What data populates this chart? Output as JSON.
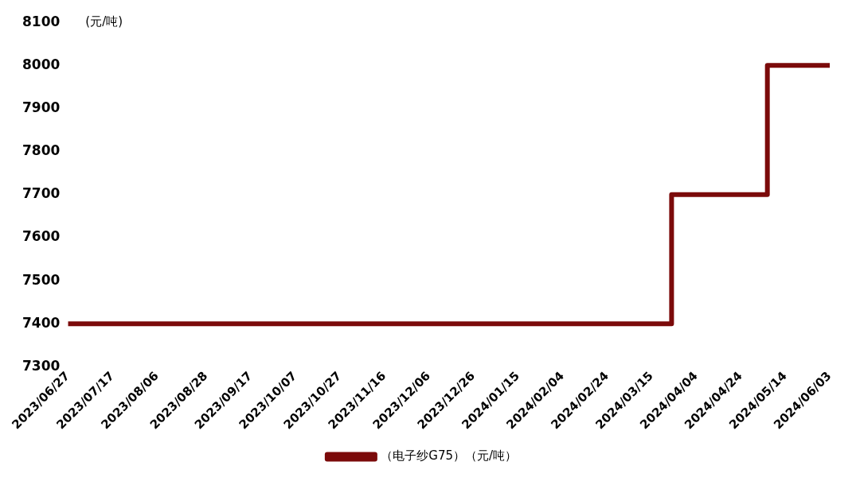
{
  "chart_data": {
    "type": "step",
    "ylabel": "(元/吨)",
    "x": [
      "2023-06-27",
      "2024-03-24",
      "2024-05-06",
      "2024-06-03"
    ],
    "series": [
      {
        "name": "（电子纱G75）（元/吨）",
        "color": "#7b0a0a",
        "values": [
          7400,
          7700,
          8000,
          8000
        ]
      }
    ],
    "xlim": [
      "2023-06-27",
      "2024-06-03"
    ],
    "xticks": [
      {
        "value": "2023-06-27",
        "label": "2023/06/27"
      },
      {
        "value": "2023-07-17",
        "label": "2023/07/17"
      },
      {
        "value": "2023-08-06",
        "label": "2023/08/06"
      },
      {
        "value": "2023-08-28",
        "label": "2023/08/28"
      },
      {
        "value": "2023-09-17",
        "label": "2023/09/17"
      },
      {
        "value": "2023-10-07",
        "label": "2023/10/07"
      },
      {
        "value": "2023-10-27",
        "label": "2023/10/27"
      },
      {
        "value": "2023-11-16",
        "label": "2023/11/16"
      },
      {
        "value": "2023-12-06",
        "label": "2023/12/06"
      },
      {
        "value": "2023-12-26",
        "label": "2023/12/26"
      },
      {
        "value": "2024-01-15",
        "label": "2024/01/15"
      },
      {
        "value": "2024-02-04",
        "label": "2024/02/04"
      },
      {
        "value": "2024-02-24",
        "label": "2024/02/24"
      },
      {
        "value": "2024-03-15",
        "label": "2024/03/15"
      },
      {
        "value": "2024-04-04",
        "label": "2024/04/04"
      },
      {
        "value": "2024-04-24",
        "label": "2024/04/24"
      },
      {
        "value": "2024-05-14",
        "label": "2024/05/14"
      },
      {
        "value": "2024-06-03",
        "label": "2024/06/03"
      }
    ],
    "ylim": [
      7300,
      8100
    ],
    "yticks": [
      7300,
      7400,
      7500,
      7600,
      7700,
      7800,
      7900,
      8000,
      8100
    ],
    "grid": false,
    "legend": "bottom",
    "marker": "none",
    "line_style": "solid"
  }
}
